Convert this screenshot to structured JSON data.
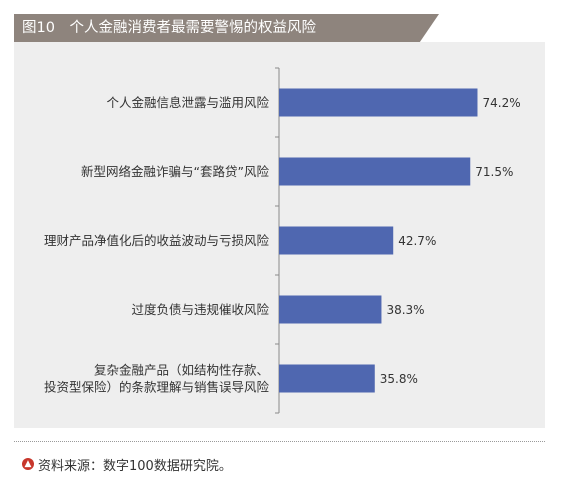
{
  "header": {
    "title": "图10　个人金融消费者最需要警惕的权益风险"
  },
  "chart_data": {
    "type": "bar",
    "orientation": "horizontal",
    "title": "图10　个人金融消费者最需要警惕的权益风险",
    "xlabel": "",
    "ylabel": "",
    "xlim": [
      0,
      80
    ],
    "grid": false,
    "categories": [
      [
        "个人金融信息泄露与滥用风险"
      ],
      [
        "新型网络金融诈骗与“套路贷”风险"
      ],
      [
        "理财产品净值化后的收益波动与亏损风险"
      ],
      [
        "过度负债与违规催收风险"
      ],
      [
        "复杂金融产品（如结构性存款、",
        "投资型保险）的条款理解与销售误导风险"
      ]
    ],
    "values": [
      74.2,
      71.5,
      42.7,
      38.3,
      35.8
    ],
    "value_labels": [
      "74.2%",
      "71.5%",
      "42.7%",
      "38.3%",
      "35.8%"
    ],
    "bar_color": "#4f67b0"
  },
  "footer": {
    "source_icon": "up-arrow-circle-icon",
    "source_text": "资料来源：数字100数据研究院。"
  }
}
